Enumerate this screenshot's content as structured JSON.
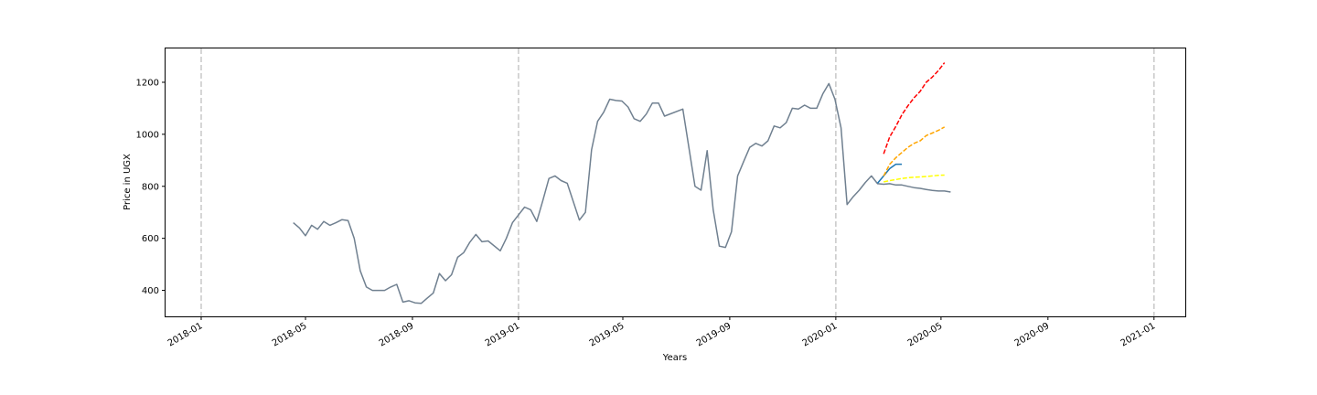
{
  "chart_data": {
    "type": "line",
    "title": "",
    "xlabel": "Years",
    "ylabel": "Price in UGX",
    "xlim": [
      "2017-11-21",
      "2021-02-06"
    ],
    "ylim": [
      300,
      1330
    ],
    "x_ticks": [
      "2018-01",
      "2018-05",
      "2018-09",
      "2019-01",
      "2019-05",
      "2019-09",
      "2020-01",
      "2020-05",
      "2020-09",
      "2021-01"
    ],
    "y_ticks": [
      400,
      600,
      800,
      1000,
      1200
    ],
    "vertical_gridlines": [
      "2018-01-01",
      "2019-01-01",
      "2020-01-01",
      "2021-01-01"
    ],
    "grid_style": "dashed",
    "legend": "none",
    "series": [
      {
        "color": "#708090",
        "style": "solid",
        "points": [
          [
            "2018-04-17",
            660
          ],
          [
            "2018-04-24",
            640
          ],
          [
            "2018-05-01",
            610
          ],
          [
            "2018-05-08",
            650
          ],
          [
            "2018-05-15",
            635
          ],
          [
            "2018-05-22",
            665
          ],
          [
            "2018-05-29",
            650
          ],
          [
            "2018-06-05",
            660
          ],
          [
            "2018-06-12",
            672
          ],
          [
            "2018-06-19",
            668
          ],
          [
            "2018-06-26",
            600
          ],
          [
            "2018-07-03",
            475
          ],
          [
            "2018-07-10",
            413
          ],
          [
            "2018-07-17",
            400
          ],
          [
            "2018-07-31",
            400
          ],
          [
            "2018-08-07",
            413
          ],
          [
            "2018-08-14",
            423
          ],
          [
            "2018-08-21",
            355
          ],
          [
            "2018-08-28",
            360
          ],
          [
            "2018-09-04",
            352
          ],
          [
            "2018-09-11",
            350
          ],
          [
            "2018-09-18",
            370
          ],
          [
            "2018-09-25",
            390
          ],
          [
            "2018-10-02",
            465
          ],
          [
            "2018-10-09",
            437
          ],
          [
            "2018-10-16",
            460
          ],
          [
            "2018-10-23",
            527
          ],
          [
            "2018-10-30",
            545
          ],
          [
            "2018-11-06",
            585
          ],
          [
            "2018-11-13",
            615
          ],
          [
            "2018-11-20",
            587
          ],
          [
            "2018-11-27",
            590
          ],
          [
            "2018-12-11",
            552
          ],
          [
            "2018-12-18",
            600
          ],
          [
            "2018-12-25",
            660
          ],
          [
            "2019-01-01",
            690
          ],
          [
            "2019-01-08",
            720
          ],
          [
            "2019-01-15",
            710
          ],
          [
            "2019-01-22",
            665
          ],
          [
            "2019-01-29",
            745
          ],
          [
            "2019-02-05",
            830
          ],
          [
            "2019-02-12",
            840
          ],
          [
            "2019-02-19",
            822
          ],
          [
            "2019-02-26",
            812
          ],
          [
            "2019-03-12",
            670
          ],
          [
            "2019-03-19",
            700
          ],
          [
            "2019-03-26",
            940
          ],
          [
            "2019-04-02",
            1050
          ],
          [
            "2019-04-09",
            1085
          ],
          [
            "2019-04-16",
            1135
          ],
          [
            "2019-04-23",
            1130
          ],
          [
            "2019-04-30",
            1128
          ],
          [
            "2019-05-07",
            1105
          ],
          [
            "2019-05-14",
            1060
          ],
          [
            "2019-05-21",
            1050
          ],
          [
            "2019-05-28",
            1078
          ],
          [
            "2019-06-04",
            1120
          ],
          [
            "2019-06-11",
            1120
          ],
          [
            "2019-06-18",
            1070
          ],
          [
            "2019-07-09",
            1097
          ],
          [
            "2019-07-16",
            950
          ],
          [
            "2019-07-23",
            800
          ],
          [
            "2019-07-30",
            785
          ],
          [
            "2019-08-06",
            937
          ],
          [
            "2019-08-13",
            710
          ],
          [
            "2019-08-20",
            570
          ],
          [
            "2019-08-27",
            565
          ],
          [
            "2019-09-03",
            625
          ],
          [
            "2019-09-10",
            840
          ],
          [
            "2019-09-17",
            895
          ],
          [
            "2019-09-24",
            950
          ],
          [
            "2019-10-01",
            965
          ],
          [
            "2019-10-08",
            955
          ],
          [
            "2019-10-15",
            975
          ],
          [
            "2019-10-22",
            1032
          ],
          [
            "2019-10-29",
            1025
          ],
          [
            "2019-11-05",
            1045
          ],
          [
            "2019-11-12",
            1100
          ],
          [
            "2019-11-19",
            1097
          ],
          [
            "2019-11-26",
            1112
          ],
          [
            "2019-12-03",
            1100
          ],
          [
            "2019-12-10",
            1100
          ],
          [
            "2019-12-17",
            1155
          ],
          [
            "2019-12-24",
            1195
          ],
          [
            "2019-12-31",
            1135
          ],
          [
            "2020-01-07",
            1025
          ],
          [
            "2020-01-14",
            730
          ],
          [
            "2020-01-21",
            760
          ],
          [
            "2020-01-28",
            785
          ],
          [
            "2020-02-04",
            815
          ],
          [
            "2020-02-11",
            840
          ],
          [
            "2020-02-18",
            810
          ],
          [
            "2020-02-25",
            808
          ],
          [
            "2020-03-03",
            810
          ],
          [
            "2020-03-10",
            805
          ],
          [
            "2020-03-17",
            805
          ],
          [
            "2020-03-24",
            800
          ],
          [
            "2020-03-31",
            795
          ],
          [
            "2020-04-07",
            792
          ],
          [
            "2020-04-14",
            788
          ],
          [
            "2020-04-21",
            784
          ],
          [
            "2020-04-28",
            782
          ],
          [
            "2020-05-05",
            782
          ],
          [
            "2020-05-12",
            778
          ]
        ]
      },
      {
        "color": "#1f77b4",
        "style": "solid",
        "points": [
          [
            "2020-02-18",
            812
          ],
          [
            "2020-02-25",
            840
          ],
          [
            "2020-03-03",
            868
          ],
          [
            "2020-03-10",
            885
          ],
          [
            "2020-03-17",
            885
          ]
        ]
      },
      {
        "color": "#ff0000",
        "style": "dashed",
        "points": [
          [
            "2020-02-25",
            925
          ],
          [
            "2020-03-03",
            990
          ],
          [
            "2020-03-10",
            1030
          ],
          [
            "2020-03-17",
            1075
          ],
          [
            "2020-03-24",
            1110
          ],
          [
            "2020-03-31",
            1140
          ],
          [
            "2020-04-07",
            1165
          ],
          [
            "2020-04-14",
            1200
          ],
          [
            "2020-04-21",
            1220
          ],
          [
            "2020-04-28",
            1245
          ],
          [
            "2020-05-05",
            1275
          ]
        ]
      },
      {
        "color": "#ffa500",
        "style": "dashed",
        "points": [
          [
            "2020-02-25",
            840
          ],
          [
            "2020-03-03",
            885
          ],
          [
            "2020-03-10",
            910
          ],
          [
            "2020-03-17",
            930
          ],
          [
            "2020-03-24",
            950
          ],
          [
            "2020-03-31",
            965
          ],
          [
            "2020-04-07",
            975
          ],
          [
            "2020-04-14",
            995
          ],
          [
            "2020-04-21",
            1005
          ],
          [
            "2020-04-28",
            1015
          ],
          [
            "2020-05-05",
            1028
          ]
        ]
      },
      {
        "color": "#ffff00",
        "style": "dashed",
        "points": [
          [
            "2020-02-25",
            817
          ],
          [
            "2020-03-03",
            822
          ],
          [
            "2020-03-10",
            826
          ],
          [
            "2020-03-17",
            830
          ],
          [
            "2020-03-24",
            833
          ],
          [
            "2020-03-31",
            835
          ],
          [
            "2020-04-07",
            836
          ],
          [
            "2020-04-14",
            838
          ],
          [
            "2020-04-21",
            840
          ],
          [
            "2020-04-28",
            842
          ],
          [
            "2020-05-05",
            843
          ]
        ]
      }
    ]
  }
}
